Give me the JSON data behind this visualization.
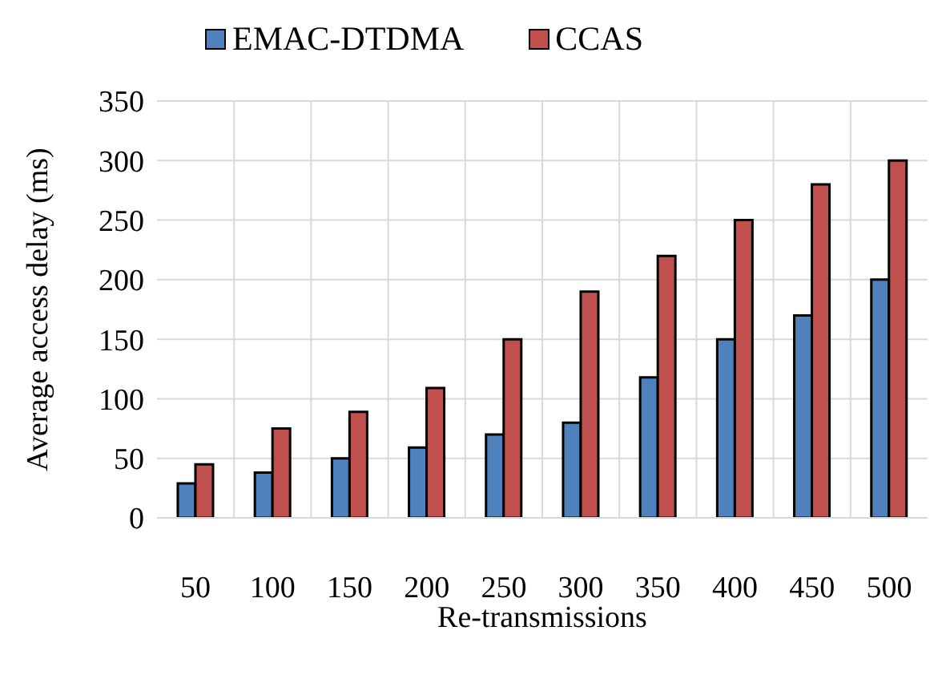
{
  "chart_data": {
    "type": "bar",
    "xlabel": "Re-transmissions",
    "ylabel": "Average access delay (ms)",
    "categories": [
      "50",
      "100",
      "150",
      "200",
      "250",
      "300",
      "350",
      "400",
      "450",
      "500"
    ],
    "series": [
      {
        "name": "EMAC-DTDMA",
        "color": "#4f81bd",
        "values": [
          29,
          38,
          50,
          59,
          70,
          80,
          118,
          150,
          170,
          200
        ]
      },
      {
        "name": "CCAS",
        "color": "#c0504d",
        "values": [
          45,
          75,
          89,
          109,
          150,
          190,
          220,
          250,
          280,
          300
        ]
      }
    ],
    "ylim": [
      0,
      350
    ],
    "yticks": [
      0,
      50,
      100,
      150,
      200,
      250,
      300,
      350
    ],
    "grid": true,
    "legend": "top left"
  }
}
